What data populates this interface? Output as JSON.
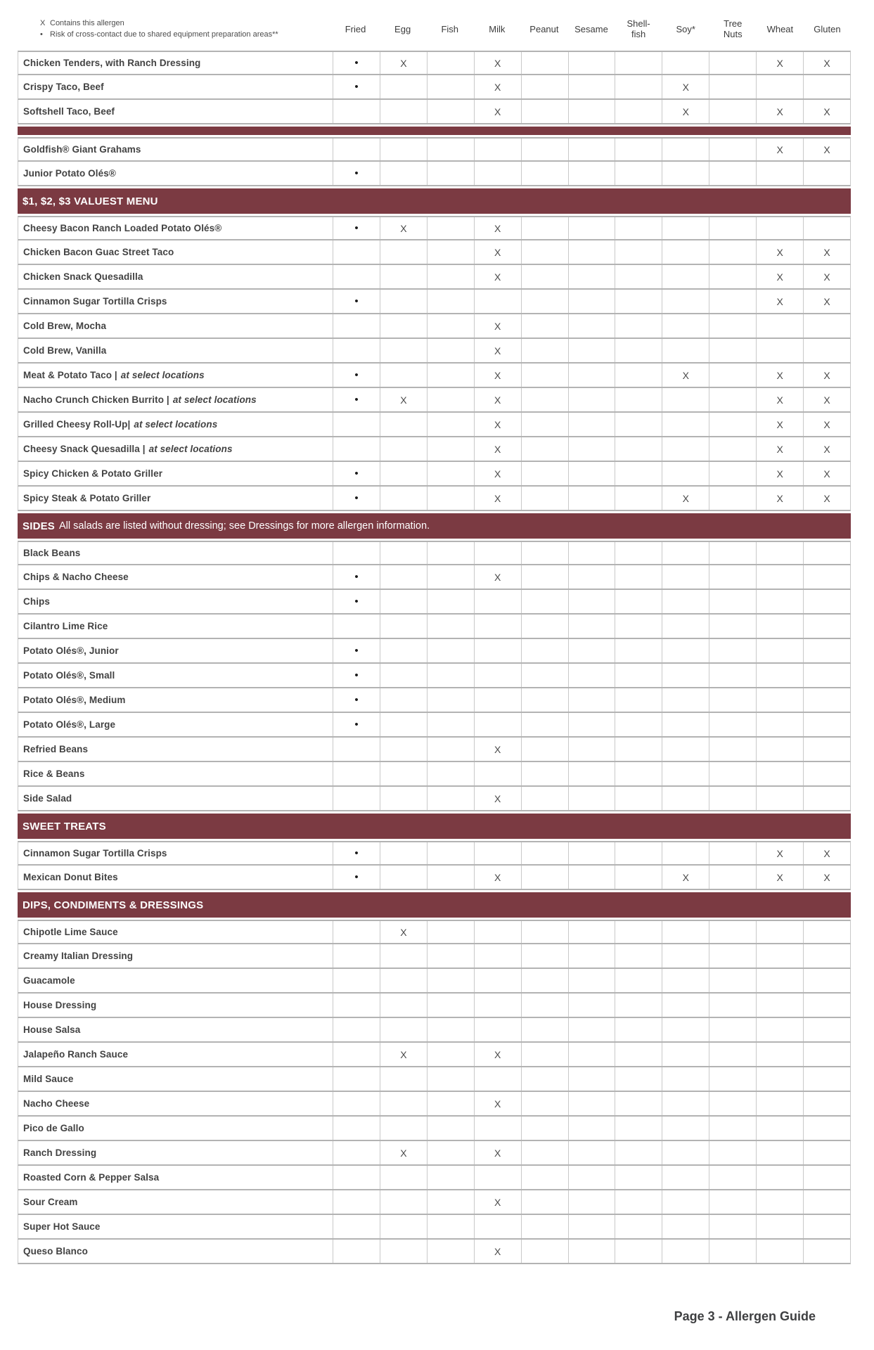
{
  "legend": {
    "contains_symbol": "X",
    "contains_text": "Contains this allergen",
    "cross_symbol": "•",
    "cross_text": "Risk of cross-contact due to shared equipment preparation areas**"
  },
  "columns": [
    "Fried",
    "Egg",
    "Fish",
    "Milk",
    "Peanut",
    "Sesame",
    "Shell-\nfish",
    "Soy*",
    "Tree\nNuts",
    "Wheat",
    "Gluten"
  ],
  "colors": {
    "section_bar": "#7b3a42",
    "row_line": "#b3b3b3",
    "column_line": "#c9c9c9",
    "mark": "#4a4a4a"
  },
  "rows": [
    {
      "type": "item",
      "name": "Chicken Tenders, with Ranch Dressing",
      "note": "",
      "marks": [
        "dot",
        "X",
        "",
        "X",
        "",
        "",
        "",
        "",
        "",
        "X",
        "X"
      ]
    },
    {
      "type": "item",
      "name": "Crispy Taco, Beef",
      "note": "",
      "marks": [
        "dot",
        "",
        "",
        "X",
        "",
        "",
        "",
        "X",
        "",
        "",
        ""
      ]
    },
    {
      "type": "item",
      "name": "Softshell Taco, Beef",
      "note": "",
      "marks": [
        "",
        "",
        "",
        "X",
        "",
        "",
        "",
        "X",
        "",
        "X",
        "X"
      ]
    },
    {
      "type": "divider"
    },
    {
      "type": "item",
      "name": "Goldfish® Giant Grahams",
      "note": "",
      "marks": [
        "",
        "",
        "",
        "",
        "",
        "",
        "",
        "",
        "",
        "X",
        "X"
      ]
    },
    {
      "type": "item",
      "name": "Junior Potato Olés®",
      "note": "",
      "marks": [
        "dot",
        "",
        "",
        "",
        "",
        "",
        "",
        "",
        "",
        "",
        ""
      ]
    },
    {
      "type": "section",
      "label": "$1, $2, $3 VALUEST MENU",
      "note": ""
    },
    {
      "type": "item",
      "name": "Cheesy Bacon Ranch Loaded Potato Olés®",
      "note": "",
      "marks": [
        "dot",
        "X",
        "",
        "X",
        "",
        "",
        "",
        "",
        "",
        "",
        ""
      ]
    },
    {
      "type": "item",
      "name": "Chicken Bacon Guac Street Taco",
      "note": "",
      "marks": [
        "",
        "",
        "",
        "X",
        "",
        "",
        "",
        "",
        "",
        "X",
        "X"
      ]
    },
    {
      "type": "item",
      "name": "Chicken Snack Quesadilla",
      "note": "",
      "marks": [
        "",
        "",
        "",
        "X",
        "",
        "",
        "",
        "",
        "",
        "X",
        "X"
      ]
    },
    {
      "type": "item",
      "name": "Cinnamon Sugar Tortilla Crisps",
      "note": "",
      "marks": [
        "dot",
        "",
        "",
        "",
        "",
        "",
        "",
        "",
        "",
        "X",
        "X"
      ]
    },
    {
      "type": "item",
      "name": "Cold Brew, Mocha",
      "note": "",
      "marks": [
        "",
        "",
        "",
        "X",
        "",
        "",
        "",
        "",
        "",
        "",
        ""
      ]
    },
    {
      "type": "item",
      "name": "Cold Brew, Vanilla",
      "note": "",
      "marks": [
        "",
        "",
        "",
        "X",
        "",
        "",
        "",
        "",
        "",
        "",
        ""
      ]
    },
    {
      "type": "item",
      "name": "Meat & Potato Taco |",
      "note": "at select locations",
      "marks": [
        "dot",
        "",
        "",
        "X",
        "",
        "",
        "",
        "X",
        "",
        "X",
        "X"
      ]
    },
    {
      "type": "item",
      "name": "Nacho Crunch Chicken Burrito |",
      "note": "at select locations",
      "marks": [
        "dot",
        "X",
        "",
        "X",
        "",
        "",
        "",
        "",
        "",
        "X",
        "X"
      ]
    },
    {
      "type": "item",
      "name": "Grilled Cheesy Roll-Up|",
      "note": "at select locations",
      "marks": [
        "",
        "",
        "",
        "X",
        "",
        "",
        "",
        "",
        "",
        "X",
        "X"
      ]
    },
    {
      "type": "item",
      "name": "Cheesy Snack Quesadilla  |",
      "note": "at select locations",
      "marks": [
        "",
        "",
        "",
        "X",
        "",
        "",
        "",
        "",
        "",
        "X",
        "X"
      ]
    },
    {
      "type": "item",
      "name": "Spicy Chicken & Potato Griller",
      "note": "",
      "marks": [
        "dot",
        "",
        "",
        "X",
        "",
        "",
        "",
        "",
        "",
        "X",
        "X"
      ]
    },
    {
      "type": "item",
      "name": "Spicy Steak & Potato Griller",
      "note": "",
      "marks": [
        "dot",
        "",
        "",
        "X",
        "",
        "",
        "",
        "X",
        "",
        "X",
        "X"
      ]
    },
    {
      "type": "section",
      "label": "SIDES",
      "note": "All salads are listed without dressing; see Dressings for more allergen information."
    },
    {
      "type": "item",
      "name": "Black Beans",
      "note": "",
      "marks": [
        "",
        "",
        "",
        "",
        "",
        "",
        "",
        "",
        "",
        "",
        ""
      ]
    },
    {
      "type": "item",
      "name": "Chips & Nacho Cheese",
      "note": "",
      "marks": [
        "dot",
        "",
        "",
        "X",
        "",
        "",
        "",
        "",
        "",
        "",
        ""
      ]
    },
    {
      "type": "item",
      "name": "Chips",
      "note": "",
      "marks": [
        "dot",
        "",
        "",
        "",
        "",
        "",
        "",
        "",
        "",
        "",
        ""
      ]
    },
    {
      "type": "item",
      "name": "Cilantro Lime Rice",
      "note": "",
      "marks": [
        "",
        "",
        "",
        "",
        "",
        "",
        "",
        "",
        "",
        "",
        ""
      ]
    },
    {
      "type": "item",
      "name": "Potato Olés®, Junior",
      "note": "",
      "marks": [
        "dot",
        "",
        "",
        "",
        "",
        "",
        "",
        "",
        "",
        "",
        ""
      ]
    },
    {
      "type": "item",
      "name": "Potato Olés®, Small",
      "note": "",
      "marks": [
        "dot",
        "",
        "",
        "",
        "",
        "",
        "",
        "",
        "",
        "",
        ""
      ]
    },
    {
      "type": "item",
      "name": "Potato Olés®, Medium",
      "note": "",
      "marks": [
        "dot",
        "",
        "",
        "",
        "",
        "",
        "",
        "",
        "",
        "",
        ""
      ]
    },
    {
      "type": "item",
      "name": "Potato Olés®, Large",
      "note": "",
      "marks": [
        "dot",
        "",
        "",
        "",
        "",
        "",
        "",
        "",
        "",
        "",
        ""
      ]
    },
    {
      "type": "item",
      "name": "Refried Beans",
      "note": "",
      "marks": [
        "",
        "",
        "",
        "X",
        "",
        "",
        "",
        "",
        "",
        "",
        ""
      ]
    },
    {
      "type": "item",
      "name": "Rice & Beans",
      "note": "",
      "marks": [
        "",
        "",
        "",
        "",
        "",
        "",
        "",
        "",
        "",
        "",
        ""
      ]
    },
    {
      "type": "item",
      "name": "Side Salad",
      "note": "",
      "marks": [
        "",
        "",
        "",
        "X",
        "",
        "",
        "",
        "",
        "",
        "",
        ""
      ]
    },
    {
      "type": "section",
      "label": "SWEET TREATS",
      "note": ""
    },
    {
      "type": "item",
      "name": "Cinnamon Sugar Tortilla Crisps",
      "note": "",
      "marks": [
        "dot",
        "",
        "",
        "",
        "",
        "",
        "",
        "",
        "",
        "X",
        "X"
      ]
    },
    {
      "type": "item",
      "name": "Mexican Donut Bites",
      "note": "",
      "marks": [
        "dot",
        "",
        "",
        "X",
        "",
        "",
        "",
        "X",
        "",
        "X",
        "X"
      ]
    },
    {
      "type": "section",
      "label": "DIPS, CONDIMENTS & DRESSINGS",
      "note": ""
    },
    {
      "type": "item",
      "name": "Chipotle Lime Sauce",
      "note": "",
      "marks": [
        "",
        "X",
        "",
        "",
        "",
        "",
        "",
        "",
        "",
        "",
        ""
      ]
    },
    {
      "type": "item",
      "name": "Creamy Italian Dressing",
      "note": "",
      "marks": [
        "",
        "",
        "",
        "",
        "",
        "",
        "",
        "",
        "",
        "",
        ""
      ]
    },
    {
      "type": "item",
      "name": "Guacamole",
      "note": "",
      "marks": [
        "",
        "",
        "",
        "",
        "",
        "",
        "",
        "",
        "",
        "",
        ""
      ]
    },
    {
      "type": "item",
      "name": "House Dressing",
      "note": "",
      "marks": [
        "",
        "",
        "",
        "",
        "",
        "",
        "",
        "",
        "",
        "",
        ""
      ]
    },
    {
      "type": "item",
      "name": "House Salsa",
      "note": "",
      "marks": [
        "",
        "",
        "",
        "",
        "",
        "",
        "",
        "",
        "",
        "",
        ""
      ]
    },
    {
      "type": "item",
      "name": "Jalapeño Ranch Sauce",
      "note": "",
      "marks": [
        "",
        "X",
        "",
        "X",
        "",
        "",
        "",
        "",
        "",
        "",
        ""
      ]
    },
    {
      "type": "item",
      "name": "Mild Sauce",
      "note": "",
      "marks": [
        "",
        "",
        "",
        "",
        "",
        "",
        "",
        "",
        "",
        "",
        ""
      ]
    },
    {
      "type": "item",
      "name": "Nacho Cheese",
      "note": "",
      "marks": [
        "",
        "",
        "",
        "X",
        "",
        "",
        "",
        "",
        "",
        "",
        ""
      ]
    },
    {
      "type": "item",
      "name": "Pico de Gallo",
      "note": "",
      "marks": [
        "",
        "",
        "",
        "",
        "",
        "",
        "",
        "",
        "",
        "",
        ""
      ]
    },
    {
      "type": "item",
      "name": "Ranch Dressing",
      "note": "",
      "marks": [
        "",
        "X",
        "",
        "X",
        "",
        "",
        "",
        "",
        "",
        "",
        ""
      ]
    },
    {
      "type": "item",
      "name": "Roasted Corn & Pepper Salsa",
      "note": "",
      "marks": [
        "",
        "",
        "",
        "",
        "",
        "",
        "",
        "",
        "",
        "",
        ""
      ]
    },
    {
      "type": "item",
      "name": "Sour Cream",
      "note": "",
      "marks": [
        "",
        "",
        "",
        "X",
        "",
        "",
        "",
        "",
        "",
        "",
        ""
      ]
    },
    {
      "type": "item",
      "name": "Super Hot Sauce",
      "note": "",
      "marks": [
        "",
        "",
        "",
        "",
        "",
        "",
        "",
        "",
        "",
        "",
        ""
      ]
    },
    {
      "type": "item",
      "name": "Queso Blanco",
      "note": "",
      "marks": [
        "",
        "",
        "",
        "X",
        "",
        "",
        "",
        "",
        "",
        "",
        ""
      ]
    }
  ],
  "footer": {
    "text": "Page 3 - Allergen Guide"
  }
}
